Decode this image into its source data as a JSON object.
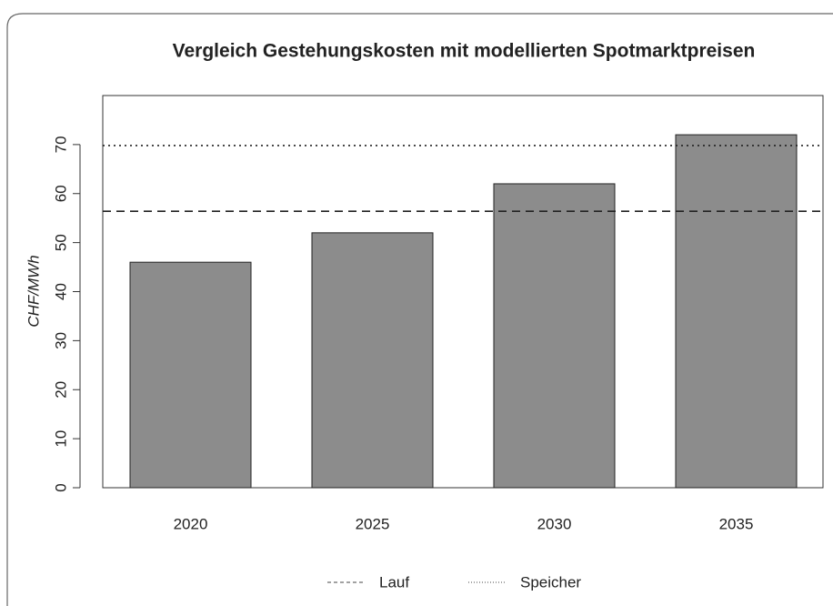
{
  "chart_data": {
    "type": "bar",
    "title": "Vergleich Gestehungskosten mit modellierten Spotmarktpreisen",
    "ylabel": "CHF/MWh",
    "categories": [
      "2020",
      "2025",
      "2030",
      "2035"
    ],
    "values": [
      46,
      52,
      62,
      72
    ],
    "color": "#8c8c8c",
    "ylim": [
      0,
      80
    ],
    "yticks": [
      0,
      10,
      20,
      30,
      40,
      50,
      60,
      70
    ],
    "reference_lines": [
      {
        "name": "Lauf",
        "value": 56.4,
        "style": "dashed"
      },
      {
        "name": "Speicher",
        "value": 69.8,
        "style": "dotted"
      }
    ],
    "legend": "bottom"
  }
}
